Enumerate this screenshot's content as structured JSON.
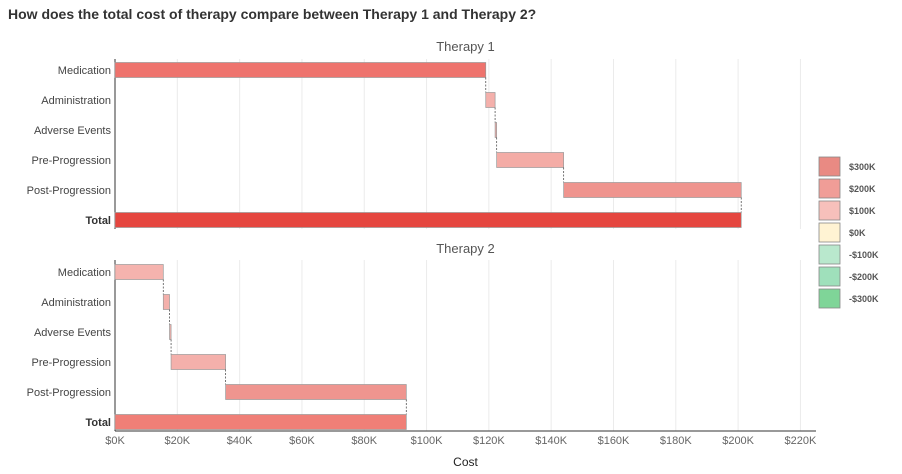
{
  "chart_data": {
    "type": "waterfall",
    "title": "How does the total cost of therapy compare between Therapy 1 and Therapy 2?",
    "xlabel": "Cost",
    "ylabel": "",
    "xlim": [
      0,
      225000
    ],
    "x_ticks": [
      0,
      20000,
      40000,
      60000,
      80000,
      100000,
      120000,
      140000,
      160000,
      180000,
      200000,
      220000
    ],
    "x_tick_labels": [
      "$0K",
      "$20K",
      "$40K",
      "$60K",
      "$80K",
      "$100K",
      "$120K",
      "$140K",
      "$160K",
      "$180K",
      "$200K",
      "$220K"
    ],
    "categories": [
      "Medication",
      "Administration",
      "Adverse Events",
      "Pre-Progression",
      "Post-Progression",
      "Total"
    ],
    "grid": "vertical",
    "legend": {
      "position": "right",
      "items": [
        {
          "label": "$300K",
          "color": "#e98a83"
        },
        {
          "label": "$200K",
          "color": "#f09d97"
        },
        {
          "label": "$100K",
          "color": "#f7c0bb"
        },
        {
          "label": "$0K",
          "color": "#fff3d3"
        },
        {
          "label": "-$100K",
          "color": "#b9e8cd"
        },
        {
          "label": "-$200K",
          "color": "#9fe0bb"
        },
        {
          "label": "-$300K",
          "color": "#7fd598"
        }
      ]
    },
    "panels": [
      {
        "title": "Therapy 1",
        "values": [
          119000,
          3000,
          500,
          21500,
          57000
        ],
        "total": 201000,
        "colors": [
          "#ee736d",
          "#f4b0ab",
          "#f4b0ab",
          "#f4aca6",
          "#ef948e",
          "#e5463f"
        ]
      },
      {
        "title": "Therapy 2",
        "values": [
          15500,
          2000,
          500,
          17500,
          58000
        ],
        "total": 93500,
        "colors": [
          "#f5b3ae",
          "#f4b0ab",
          "#f4b0ab",
          "#f4b0ab",
          "#ef958f",
          "#f07f77"
        ]
      }
    ]
  }
}
